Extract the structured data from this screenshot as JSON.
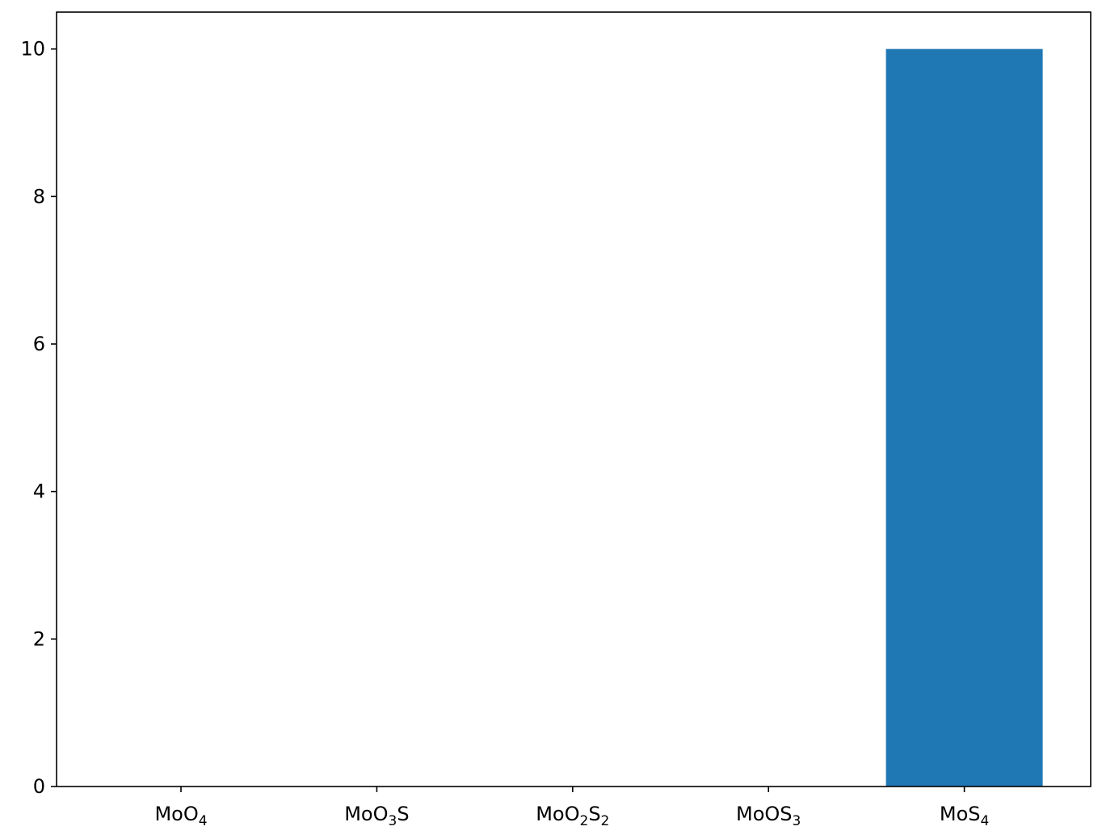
{
  "chart_data": {
    "type": "bar",
    "categories": [
      {
        "parts": [
          {
            "t": "MoO",
            "sub": false
          },
          {
            "t": "4",
            "sub": true
          }
        ]
      },
      {
        "parts": [
          {
            "t": "MoO",
            "sub": false
          },
          {
            "t": "3",
            "sub": true
          },
          {
            "t": "S",
            "sub": false
          }
        ]
      },
      {
        "parts": [
          {
            "t": "MoO",
            "sub": false
          },
          {
            "t": "2",
            "sub": true
          },
          {
            "t": "S",
            "sub": false
          },
          {
            "t": "2",
            "sub": true
          }
        ]
      },
      {
        "parts": [
          {
            "t": "MoOS",
            "sub": false
          },
          {
            "t": "3",
            "sub": true
          }
        ]
      },
      {
        "parts": [
          {
            "t": "MoS",
            "sub": false
          },
          {
            "t": "4",
            "sub": true
          }
        ]
      }
    ],
    "values": [
      0,
      0,
      0,
      0,
      10
    ],
    "ylim": [
      0,
      10.5
    ],
    "yticks": [
      "0",
      "2",
      "4",
      "6",
      "8",
      "10"
    ],
    "bar_color": "#1f77b4",
    "grid": false,
    "title": "",
    "xlabel": "",
    "ylabel": ""
  }
}
